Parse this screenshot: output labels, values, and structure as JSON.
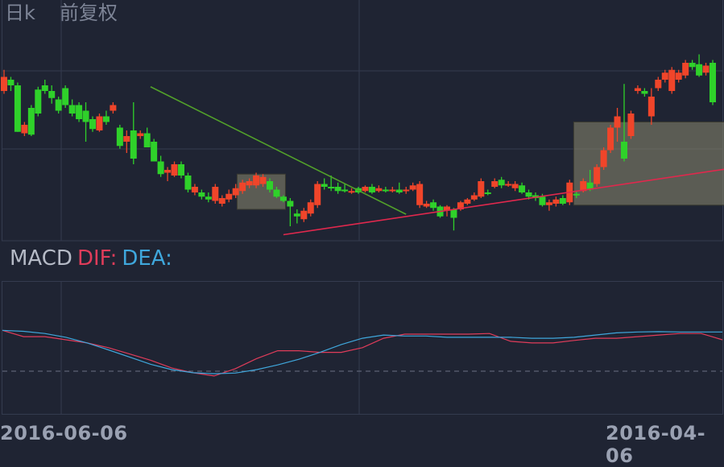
{
  "header": {
    "period_label": "日k",
    "adjust_label": "前复权"
  },
  "macd": {
    "name": "MACD",
    "dif_label": "DIF:",
    "dea_label": "DEA:",
    "colors": {
      "name": "#b5bac6",
      "dif": "#e03c5a",
      "dea": "#3fa7dc"
    }
  },
  "dates": {
    "left": "2016-06-06",
    "right": "2016-04-06"
  },
  "colors": {
    "up": "#f0452a",
    "down": "#2fd12a",
    "grid": "#343b4f",
    "trend_down": "#52a12a",
    "trend_up": "#e0284d",
    "highlight": "#8c8a70"
  },
  "chart_data": [
    {
      "type": "candlestick",
      "title": "日k",
      "ylim": [
        0,
        100
      ],
      "candles": [
        {
          "o": 84,
          "c": 94,
          "h": 99,
          "l": 82
        },
        {
          "o": 92,
          "c": 88,
          "h": 94,
          "l": 84
        },
        {
          "o": 88,
          "c": 55,
          "h": 90,
          "l": 55
        },
        {
          "o": 54,
          "c": 60,
          "h": 62,
          "l": 52
        },
        {
          "o": 72,
          "c": 53,
          "h": 74,
          "l": 52
        },
        {
          "o": 85,
          "c": 68,
          "h": 87,
          "l": 66
        },
        {
          "o": 88,
          "c": 84,
          "h": 92,
          "l": 82
        },
        {
          "o": 84,
          "c": 79,
          "h": 88,
          "l": 75
        },
        {
          "o": 78,
          "c": 70,
          "h": 80,
          "l": 68
        },
        {
          "o": 86,
          "c": 74,
          "h": 88,
          "l": 72
        },
        {
          "o": 74,
          "c": 68,
          "h": 78,
          "l": 66
        },
        {
          "o": 74,
          "c": 64,
          "h": 76,
          "l": 62
        },
        {
          "o": 70,
          "c": 62,
          "h": 76,
          "l": 48
        },
        {
          "o": 64,
          "c": 57,
          "h": 66,
          "l": 55
        },
        {
          "o": 56,
          "c": 66,
          "h": 68,
          "l": 55
        },
        {
          "o": 66,
          "c": 62,
          "h": 70,
          "l": 60
        },
        {
          "o": 70,
          "c": 74,
          "h": 76,
          "l": 68
        },
        {
          "o": 58,
          "c": 45,
          "h": 60,
          "l": 43
        },
        {
          "o": 48,
          "c": 52,
          "h": 56,
          "l": 40
        },
        {
          "o": 56,
          "c": 36,
          "h": 76,
          "l": 32
        },
        {
          "o": 52,
          "c": 54,
          "h": 56,
          "l": 50
        },
        {
          "o": 54,
          "c": 44,
          "h": 58,
          "l": 44
        },
        {
          "o": 48,
          "c": 34,
          "h": 50,
          "l": 34
        },
        {
          "o": 34,
          "c": 25,
          "h": 38,
          "l": 23
        },
        {
          "o": 26,
          "c": 28,
          "h": 30,
          "l": 20
        },
        {
          "o": 24,
          "c": 32,
          "h": 34,
          "l": 23
        },
        {
          "o": 32,
          "c": 24,
          "h": 34,
          "l": 22
        },
        {
          "o": 24,
          "c": 14,
          "h": 26,
          "l": 12
        },
        {
          "o": 12,
          "c": 16,
          "h": 18,
          "l": 10
        },
        {
          "o": 12,
          "c": 9,
          "h": 14,
          "l": 7
        },
        {
          "o": 9,
          "c": 7,
          "h": 12,
          "l": 5
        },
        {
          "o": 6,
          "c": 16,
          "h": 18,
          "l": 4
        },
        {
          "o": 4,
          "c": 8,
          "h": 10,
          "l": 2
        },
        {
          "o": 7,
          "c": 11,
          "h": 14,
          "l": 5
        },
        {
          "o": 10,
          "c": 15,
          "h": 18,
          "l": 8
        },
        {
          "o": 13,
          "c": 19,
          "h": 21,
          "l": 11
        },
        {
          "o": 17,
          "c": 20,
          "h": 22,
          "l": 15
        },
        {
          "o": 17,
          "c": 24,
          "h": 26,
          "l": 15
        },
        {
          "o": 18,
          "c": 23,
          "h": 25,
          "l": 16
        },
        {
          "o": 20,
          "c": 14,
          "h": 22,
          "l": 12
        },
        {
          "o": 14,
          "c": 9,
          "h": 16,
          "l": 8
        },
        {
          "o": 9,
          "c": 6,
          "h": 10,
          "l": 5
        },
        {
          "o": 6,
          "c": 2,
          "h": 8,
          "l": -12
        },
        {
          "o": -3,
          "c": -5,
          "h": 0,
          "l": -10
        },
        {
          "o": -7,
          "c": -1,
          "h": 1,
          "l": -9
        },
        {
          "o": -3,
          "c": 5,
          "h": 7,
          "l": -5
        },
        {
          "o": 3,
          "c": 18,
          "h": 20,
          "l": 1
        },
        {
          "o": 18,
          "c": 16,
          "h": 22,
          "l": 14
        },
        {
          "o": 16,
          "c": 15,
          "h": 24,
          "l": 13
        },
        {
          "o": 16,
          "c": 13,
          "h": 19,
          "l": 11
        },
        {
          "o": 14,
          "c": 13,
          "h": 18,
          "l": 12
        },
        {
          "o": 13,
          "c": 13,
          "h": 15,
          "l": 11
        },
        {
          "o": 15,
          "c": 12,
          "h": 16,
          "l": 11
        },
        {
          "o": 13,
          "c": 16,
          "h": 17,
          "l": 12
        },
        {
          "o": 16,
          "c": 12,
          "h": 18,
          "l": 11
        },
        {
          "o": 13,
          "c": 15,
          "h": 17,
          "l": 12
        },
        {
          "o": 14,
          "c": 13,
          "h": 16,
          "l": 12
        },
        {
          "o": 13,
          "c": 14,
          "h": 16,
          "l": 12
        },
        {
          "o": 14,
          "c": 12,
          "h": 19,
          "l": 11
        },
        {
          "o": 13,
          "c": 14,
          "h": 16,
          "l": 11
        },
        {
          "o": 14,
          "c": 17,
          "h": 19,
          "l": 13
        },
        {
          "o": 3,
          "c": 18,
          "h": 20,
          "l": 1
        },
        {
          "o": 2,
          "c": 4,
          "h": 6,
          "l": 1
        },
        {
          "o": 5,
          "c": 1,
          "h": 7,
          "l": -1
        },
        {
          "o": 2,
          "c": -5,
          "h": 3,
          "l": -6
        },
        {
          "o": -1,
          "c": 2,
          "h": 3,
          "l": -5
        },
        {
          "o": 0,
          "c": -6,
          "h": 1,
          "l": -15
        },
        {
          "o": 0,
          "c": 5,
          "h": 6,
          "l": -1
        },
        {
          "o": 4,
          "c": 7,
          "h": 8,
          "l": 3
        },
        {
          "o": 7,
          "c": 10,
          "h": 12,
          "l": 6
        },
        {
          "o": 9,
          "c": 20,
          "h": 22,
          "l": 8
        },
        {
          "o": 12,
          "c": 11,
          "h": 14,
          "l": 10
        },
        {
          "o": 16,
          "c": 20,
          "h": 22,
          "l": 15
        },
        {
          "o": 21,
          "c": 17,
          "h": 23,
          "l": 15
        },
        {
          "o": 17,
          "c": 18,
          "h": 20,
          "l": 16
        },
        {
          "o": 15,
          "c": 18,
          "h": 20,
          "l": 13
        },
        {
          "o": 17,
          "c": 12,
          "h": 19,
          "l": 11
        },
        {
          "o": 12,
          "c": 9,
          "h": 14,
          "l": 7
        },
        {
          "o": 10,
          "c": 8,
          "h": 12,
          "l": 6
        },
        {
          "o": 9,
          "c": 3,
          "h": 11,
          "l": 2
        },
        {
          "o": 3,
          "c": 5,
          "h": 7,
          "l": -1
        },
        {
          "o": 4,
          "c": 7,
          "h": 9,
          "l": 2
        },
        {
          "o": 8,
          "c": 4,
          "h": 10,
          "l": 3
        },
        {
          "o": 5,
          "c": 19,
          "h": 21,
          "l": 3
        },
        {
          "o": 11,
          "c": 10,
          "h": 13,
          "l": 8
        },
        {
          "o": 13,
          "c": 20,
          "h": 22,
          "l": 12
        },
        {
          "o": 19,
          "c": 14,
          "h": 28,
          "l": 13
        },
        {
          "o": 18,
          "c": 30,
          "h": 32,
          "l": 16
        },
        {
          "o": 30,
          "c": 42,
          "h": 44,
          "l": 28
        },
        {
          "o": 42,
          "c": 58,
          "h": 60,
          "l": 40
        },
        {
          "o": 58,
          "c": 66,
          "h": 72,
          "l": 48
        },
        {
          "o": 48,
          "c": 36,
          "h": 89,
          "l": 34
        },
        {
          "o": 52,
          "c": 68,
          "h": 70,
          "l": 50
        },
        {
          "o": 84,
          "c": 86,
          "h": 88,
          "l": 82
        },
        {
          "o": 84,
          "c": 82,
          "h": 86,
          "l": 80
        },
        {
          "o": 66,
          "c": 80,
          "h": 86,
          "l": 60
        },
        {
          "o": 86,
          "c": 92,
          "h": 94,
          "l": 84
        },
        {
          "o": 92,
          "c": 97,
          "h": 99,
          "l": 90
        },
        {
          "o": 84,
          "c": 99,
          "h": 101,
          "l": 82
        },
        {
          "o": 92,
          "c": 97,
          "h": 99,
          "l": 90
        },
        {
          "o": 95,
          "c": 104,
          "h": 106,
          "l": 93
        },
        {
          "o": 104,
          "c": 101,
          "h": 106,
          "l": 99
        },
        {
          "o": 103,
          "c": 95,
          "h": 110,
          "l": 94
        },
        {
          "o": 97,
          "c": 102,
          "h": 104,
          "l": 95
        },
        {
          "o": 104,
          "c": 76,
          "h": 106,
          "l": 74
        }
      ]
    },
    {
      "type": "line",
      "title": "MACD",
      "ylim": [
        -3,
        3
      ],
      "baseline": 0,
      "series": [
        {
          "name": "DIF",
          "values": [
            1.3,
            1.1,
            1.1,
            1.0,
            0.9,
            0.75,
            0.55,
            0.35,
            0.1,
            -0.05,
            -0.15,
            0.08,
            0.4,
            0.65,
            0.65,
            0.6,
            0.6,
            0.75,
            1.05,
            1.18,
            1.18,
            1.18,
            1.18,
            1.2,
            0.95,
            0.9,
            0.9,
            0.98,
            1.05,
            1.05,
            1.1,
            1.15,
            1.2,
            1.2,
            1.0
          ]
        },
        {
          "name": "DEA",
          "values": [
            1.3,
            1.27,
            1.2,
            1.08,
            0.9,
            0.68,
            0.45,
            0.22,
            0.05,
            -0.05,
            -0.08,
            -0.06,
            0.05,
            0.2,
            0.38,
            0.6,
            0.85,
            1.05,
            1.15,
            1.12,
            1.12,
            1.08,
            1.08,
            1.08,
            1.08,
            1.05,
            1.05,
            1.08,
            1.15,
            1.22,
            1.25,
            1.26,
            1.25,
            1.25,
            1.25
          ]
        }
      ]
    }
  ]
}
